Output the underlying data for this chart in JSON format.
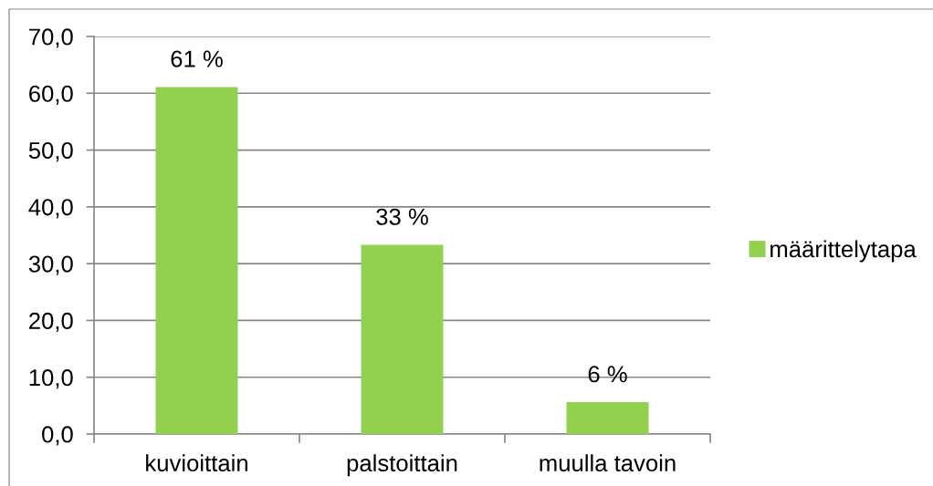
{
  "chart_data": {
    "type": "bar",
    "categories": [
      "kuvioittain",
      "palstoittain",
      "muulla tavoin"
    ],
    "series": [
      {
        "name": "määrittelytapa",
        "color": "#92d050",
        "values": [
          61.1,
          33.3,
          5.6
        ],
        "value_labels": [
          "61 %",
          "33 %",
          "6 %"
        ]
      }
    ],
    "ylim": [
      0,
      70
    ],
    "yticks": [
      {
        "value": 0,
        "label": "0,0"
      },
      {
        "value": 10,
        "label": "10,0"
      },
      {
        "value": 20,
        "label": "20,0"
      },
      {
        "value": 30,
        "label": "30,0"
      },
      {
        "value": 40,
        "label": "40,0"
      },
      {
        "value": 50,
        "label": "50,0"
      },
      {
        "value": 60,
        "label": "60,0"
      },
      {
        "value": 70,
        "label": "70,0"
      }
    ],
    "grid": "y",
    "legend": "right"
  }
}
